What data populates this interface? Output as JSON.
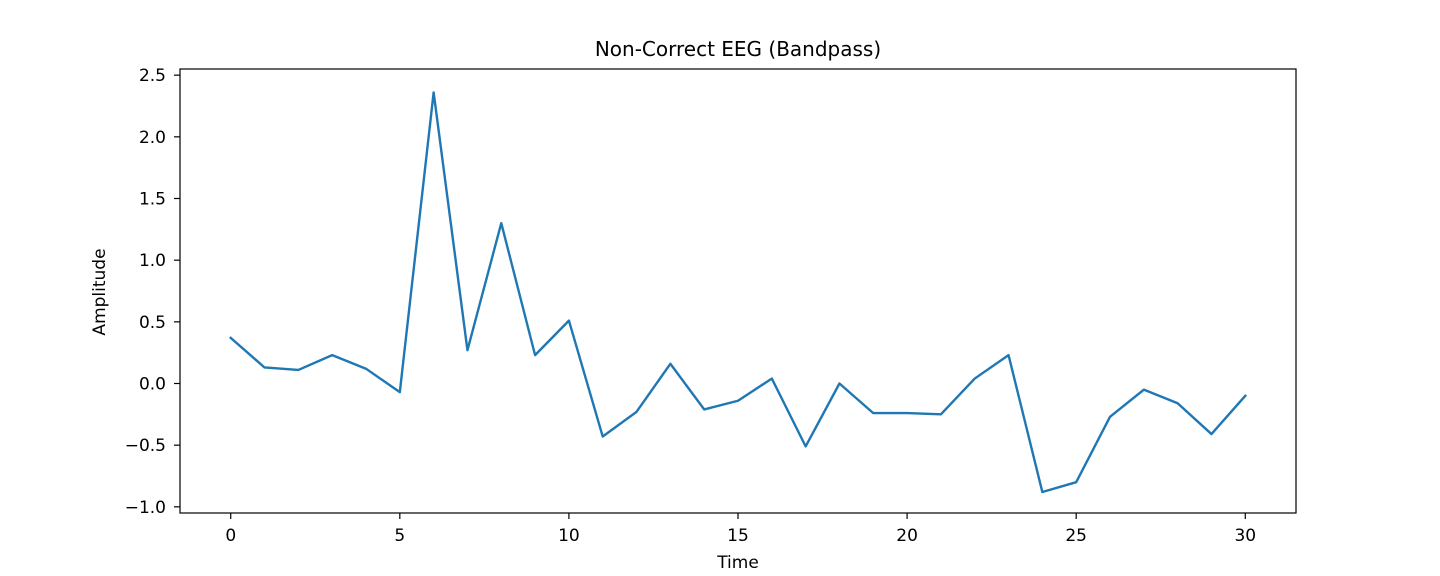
{
  "chart_data": {
    "type": "line",
    "title": "Non-Correct EEG (Bandpass)",
    "xlabel": "Time",
    "ylabel": "Amplitude",
    "xlim": [
      -1.5,
      31.5
    ],
    "ylim": [
      -1.05,
      2.55
    ],
    "x_ticks": [
      0,
      5,
      10,
      15,
      20,
      25,
      30
    ],
    "x_tick_labels": [
      "0",
      "5",
      "10",
      "15",
      "20",
      "25",
      "30"
    ],
    "y_ticks": [
      -1.0,
      -0.5,
      0.0,
      0.5,
      1.0,
      1.5,
      2.0,
      2.5
    ],
    "y_tick_labels": [
      "−1.0",
      "−0.5",
      "0.0",
      "0.5",
      "1.0",
      "1.5",
      "2.0",
      "2.5"
    ],
    "grid": false,
    "series": [
      {
        "color": "#1f77b4",
        "x": [
          0,
          1,
          2,
          3,
          4,
          5,
          6,
          7,
          8,
          9,
          10,
          11,
          12,
          13,
          14,
          15,
          16,
          17,
          18,
          19,
          20,
          21,
          22,
          23,
          24,
          25,
          26,
          27,
          28,
          29,
          30
        ],
        "values": [
          0.37,
          0.13,
          0.11,
          0.23,
          0.12,
          -0.07,
          2.36,
          0.27,
          1.3,
          0.23,
          0.51,
          -0.43,
          -0.23,
          0.16,
          -0.21,
          -0.14,
          0.04,
          -0.51,
          0.0,
          -0.24,
          -0.24,
          -0.25,
          0.04,
          0.23,
          -0.88,
          -0.8,
          -0.27,
          -0.05,
          -0.16,
          -0.41,
          -0.1
        ]
      }
    ]
  }
}
